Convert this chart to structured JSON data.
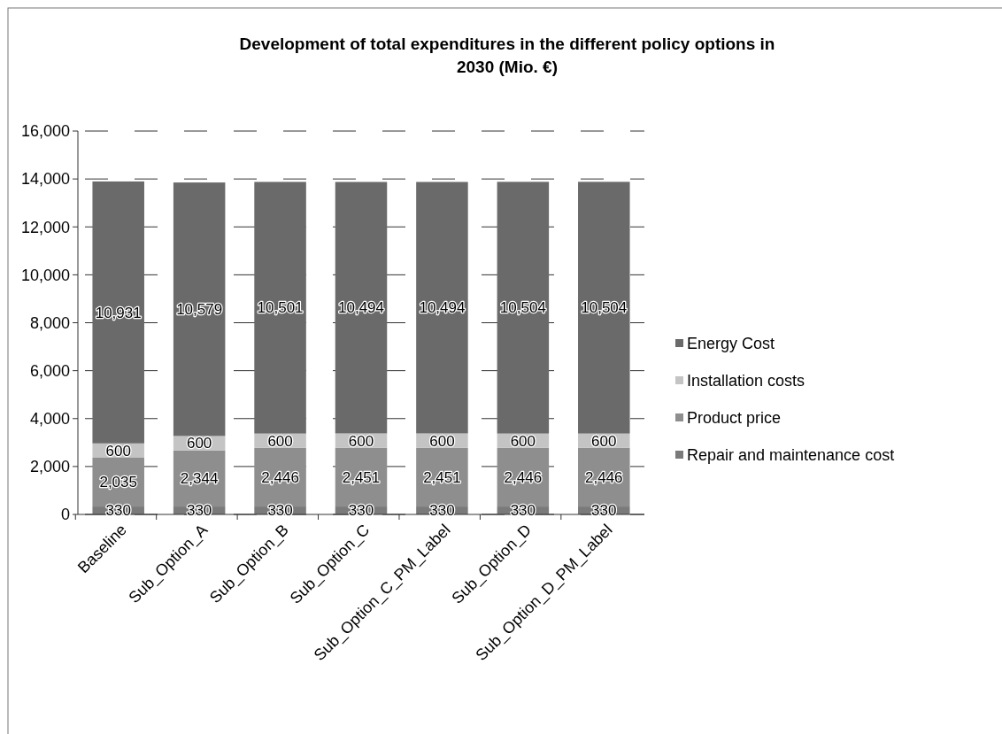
{
  "chart_data": {
    "type": "bar",
    "title": "Development of total expenditures in the different policy options in 2030 (Mio. €)",
    "stacked": true,
    "categories": [
      "Baseline",
      "Sub_Option_A",
      "Sub_Option_B",
      "Sub_Option_C",
      "Sub_Option_C_PM_Label",
      "Sub_Option_D",
      "Sub_Option_D_PM_Label"
    ],
    "series": [
      {
        "name": "Repair and maintenance cost",
        "color": "#7a7a7a",
        "values": [
          330,
          330,
          330,
          330,
          330,
          330,
          330
        ],
        "value_labels": [
          "330",
          "330",
          "330",
          "330",
          "330",
          "330",
          "330"
        ]
      },
      {
        "name": "Product price",
        "color": "#8e8e8e",
        "values": [
          2035,
          2344,
          2446,
          2451,
          2451,
          2446,
          2446
        ],
        "value_labels": [
          "2,035",
          "2,344",
          "2,446",
          "2,451",
          "2,451",
          "2,446",
          "2,446"
        ]
      },
      {
        "name": "Installation costs",
        "color": "#c4c4c4",
        "values": [
          600,
          600,
          600,
          600,
          600,
          600,
          600
        ],
        "value_labels": [
          "600",
          "600",
          "600",
          "600",
          "600",
          "600",
          "600"
        ]
      },
      {
        "name": "Energy Cost",
        "color": "#6a6a6a",
        "values": [
          10931,
          10579,
          10501,
          10494,
          10494,
          10504,
          10504
        ],
        "value_labels": [
          "10,931",
          "10,579",
          "10,501",
          "10,494",
          "10,494",
          "10,504",
          "10,504"
        ]
      }
    ],
    "ylim": [
      0,
      16000
    ],
    "yticks": [
      {
        "value": 0,
        "label": "0"
      },
      {
        "value": 2000,
        "label": "2,000"
      },
      {
        "value": 4000,
        "label": "4,000"
      },
      {
        "value": 6000,
        "label": "6,000"
      },
      {
        "value": 8000,
        "label": "8,000"
      },
      {
        "value": 10000,
        "label": "10,000"
      },
      {
        "value": 12000,
        "label": "12,000"
      },
      {
        "value": 14000,
        "label": "14,000"
      },
      {
        "value": 16000,
        "label": "16,000"
      }
    ],
    "grid": "y",
    "legend": "right"
  }
}
